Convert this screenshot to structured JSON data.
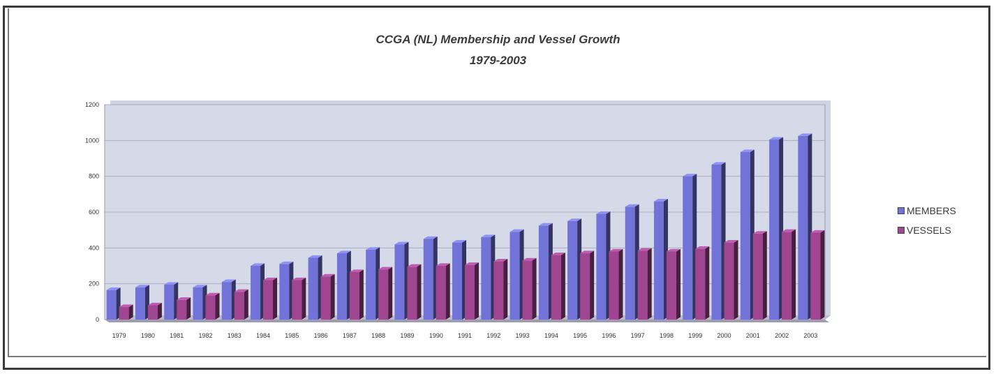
{
  "chart_data": {
    "type": "bar",
    "title": "CCGA (NL) Membership and Vessel Growth",
    "subtitle": "1979-2003",
    "categories": [
      "1979",
      "1980",
      "1981",
      "1982",
      "1983",
      "1984",
      "1985",
      "1986",
      "1987",
      "1988",
      "1989",
      "1990",
      "1991",
      "1992",
      "1993",
      "1994",
      "1995",
      "1996",
      "1997",
      "1998",
      "1999",
      "2000",
      "2001",
      "2002",
      "2003"
    ],
    "series": [
      {
        "name": "MEMBERS",
        "color": "#7173d8",
        "values": [
          165,
          180,
          195,
          180,
          210,
          300,
          310,
          345,
          370,
          390,
          420,
          450,
          430,
          460,
          490,
          525,
          550,
          590,
          630,
          660,
          800,
          865,
          935,
          1005,
          1025
        ]
      },
      {
        "name": "VESSELS",
        "color": "#a0458f",
        "values": [
          70,
          80,
          110,
          135,
          155,
          220,
          220,
          240,
          265,
          280,
          295,
          300,
          305,
          325,
          330,
          360,
          370,
          380,
          385,
          380,
          395,
          430,
          480,
          490,
          485
        ]
      }
    ],
    "yticks": [
      "0",
      "200",
      "400",
      "600",
      "800",
      "1000",
      "1200"
    ],
    "ylim": [
      0,
      1200
    ],
    "grid": true,
    "legend_position": "right"
  }
}
